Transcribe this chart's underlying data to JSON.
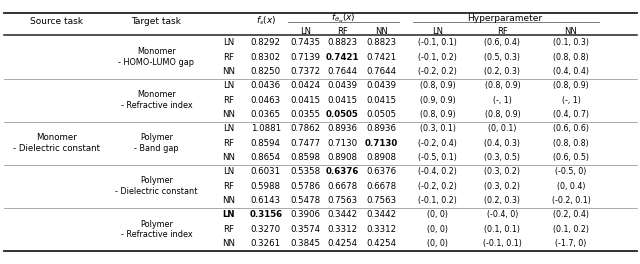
{
  "rows": [
    {
      "target": "Monomer\n- HOMO-LUMO gap",
      "methods": [
        "LN",
        "RF",
        "NN"
      ],
      "fs": [
        "0.8292",
        "0.8302",
        "0.8250"
      ],
      "ftheta_LN": [
        "0.8292",
        "0.8302",
        "0.8250"
      ],
      "ftheta_RF": [
        "0.7435",
        "0.7139",
        "0.7372"
      ],
      "ftheta_NN": [
        "0.8823",
        "0.7421",
        "0.7644"
      ],
      "hp_LN": [
        "(-0.1, 0.1)",
        "(-0.1, 0.2)",
        "(-0.2, 0.2)"
      ],
      "hp_RF": [
        "(0.6, 0.4)",
        "(0.5, 0.3)",
        "(0.2, 0.3)"
      ],
      "hp_NN": [
        "(0.1, 0.3)",
        "(0.8, 0.8)",
        "(0.4, 0.4)"
      ],
      "bold": [
        [
          false,
          false,
          false
        ],
        [
          false,
          true,
          false
        ],
        [
          false,
          false,
          false
        ],
        [
          false,
          false,
          false
        ],
        [
          false,
          false,
          false
        ],
        [
          false,
          false,
          false
        ],
        [
          false,
          false,
          false
        ]
      ]
    },
    {
      "target": "Monomer\n- Refractive index",
      "methods": [
        "LN",
        "RF",
        "NN"
      ],
      "fs": [
        "0.0436",
        "0.0463",
        "0.0365"
      ],
      "ftheta_LN": [
        "0.0436",
        "0.0463",
        "0.0365"
      ],
      "ftheta_RF": [
        "0.0424",
        "0.0415",
        "0.0355"
      ],
      "ftheta_NN": [
        "0.0439",
        "0.0415",
        "0.0505"
      ],
      "hp_LN": [
        "(0.8, 0.9)",
        "(0.9, 0.9)",
        "(0.8, 0.9)"
      ],
      "hp_RF": [
        "(0.8, 0.9)",
        "(-, 1)",
        "(0.8, 0.9)"
      ],
      "hp_NN": [
        "(0.8, 0.9)",
        "(-, 1)",
        "(0.4, 0.7)"
      ],
      "bold": [
        [
          false,
          false,
          false
        ],
        [
          false,
          false,
          false
        ],
        [
          false,
          false,
          true
        ],
        [
          false,
          false,
          false
        ],
        [
          false,
          false,
          false
        ],
        [
          false,
          false,
          false
        ],
        [
          false,
          false,
          false
        ]
      ]
    },
    {
      "target": "Polymer\n- Band gap",
      "methods": [
        "LN",
        "RF",
        "NN"
      ],
      "fs": [
        "1.0881",
        "0.8594",
        "0.8654"
      ],
      "ftheta_LN": [
        "1.0881",
        "0.8594",
        "0.8654"
      ],
      "ftheta_RF": [
        "0.7862",
        "0.7477",
        "0.8598"
      ],
      "ftheta_NN": [
        "0.8936",
        "0.7130",
        "0.8908"
      ],
      "hp_LN": [
        "(0.3, 0.1)",
        "(-0.2, 0.4)",
        "(-0.5, 0.1)"
      ],
      "hp_RF": [
        "(0, 0.1)",
        "(0.4, 0.3)",
        "(0.3, 0.5)"
      ],
      "hp_NN": [
        "(0.6, 0.6)",
        "(0.8, 0.8)",
        "(0.6, 0.5)"
      ],
      "bold": [
        [
          false,
          false,
          false
        ],
        [
          false,
          false,
          false
        ],
        [
          false,
          false,
          false
        ],
        [
          false,
          true,
          false
        ],
        [
          false,
          false,
          false
        ],
        [
          false,
          false,
          false
        ],
        [
          false,
          false,
          false
        ]
      ]
    },
    {
      "target": "Polymer\n- Dielectric constant",
      "methods": [
        "LN",
        "RF",
        "NN"
      ],
      "fs": [
        "0.6031",
        "0.5988",
        "0.6143"
      ],
      "ftheta_LN": [
        "0.6031",
        "0.5988",
        "0.6143"
      ],
      "ftheta_RF": [
        "0.5358",
        "0.5786",
        "0.5478"
      ],
      "ftheta_NN": [
        "0.6376",
        "0.6678",
        "0.7563"
      ],
      "hp_LN": [
        "(-0.4, 0.2)",
        "(-0.2, 0.2)",
        "(-0.1, 0.2)"
      ],
      "hp_RF": [
        "(0.3, 0.2)",
        "(0.3, 0.2)",
        "(0.2, 0.3)"
      ],
      "hp_NN": [
        "(-0.5, 0)",
        "(0, 0.4)",
        "(-0.2, 0.1)"
      ],
      "bold": [
        [
          false,
          false,
          false
        ],
        [
          false,
          false,
          false
        ],
        [
          true,
          false,
          false
        ],
        [
          false,
          false,
          false
        ],
        [
          false,
          false,
          false
        ],
        [
          false,
          false,
          false
        ],
        [
          false,
          false,
          false
        ]
      ]
    },
    {
      "target": "Polymer\n- Refractive index",
      "methods": [
        "LN",
        "RF",
        "NN"
      ],
      "fs": [
        "0.3156",
        "0.3270",
        "0.3261"
      ],
      "ftheta_LN": [
        "0.3156",
        "0.3270",
        "0.3261"
      ],
      "ftheta_RF": [
        "0.3906",
        "0.3574",
        "0.3845"
      ],
      "ftheta_NN": [
        "0.3442",
        "0.3312",
        "0.4254"
      ],
      "hp_LN": [
        "(0, 0)",
        "(0, 0)",
        "(0, 0)"
      ],
      "hp_RF": [
        "(-0.4, 0)",
        "(0.1, 0.1)",
        "(-0.1, 0.1)"
      ],
      "hp_NN": [
        "(0.2, 0.4)",
        "(0.1, 0.2)",
        "(-1.7, 0)"
      ],
      "bold": [
        [
          true,
          false,
          false
        ],
        [
          false,
          false,
          false
        ],
        [
          false,
          false,
          false
        ],
        [
          false,
          false,
          false
        ],
        [
          false,
          false,
          false
        ],
        [
          false,
          false,
          false
        ],
        [
          false,
          false,
          false
        ]
      ]
    }
  ],
  "source_label": "Monomer\n- Dielectric constant",
  "font_size": 6.2,
  "header_font_size": 6.5
}
